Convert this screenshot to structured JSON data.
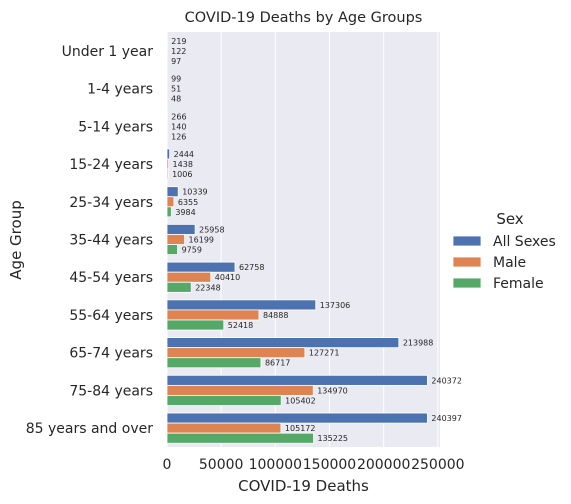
{
  "chart_data": {
    "type": "bar",
    "orientation": "horizontal",
    "title": "COVID-19 Deaths by Age Groups",
    "xlabel": "COVID-19 Deaths",
    "ylabel": "Age Group",
    "categories": [
      "Under 1 year",
      "1-4 years",
      "5-14 years",
      "15-24 years",
      "25-34 years",
      "35-44 years",
      "45-54 years",
      "55-64 years",
      "65-74 years",
      "75-84 years",
      "85 years and over"
    ],
    "series": [
      {
        "name": "All Sexes",
        "color": "#4c72b0",
        "values": [
          219,
          99,
          266,
          2444,
          10339,
          25958,
          62758,
          137306,
          213988,
          240372,
          240397
        ]
      },
      {
        "name": "Male",
        "color": "#dd8452",
        "values": [
          122,
          51,
          140,
          1438,
          6355,
          16199,
          40410,
          84888,
          127271,
          134970,
          105172
        ]
      },
      {
        "name": "Female",
        "color": "#55a868",
        "values": [
          97,
          48,
          126,
          1006,
          3984,
          9759,
          22348,
          52418,
          86717,
          105402,
          135225
        ]
      }
    ],
    "xlim": [
      0,
      252000
    ],
    "xticks": [
      0,
      50000,
      100000,
      150000,
      200000,
      250000
    ],
    "grid": true,
    "legend": {
      "title": "Sex",
      "placement": "right"
    }
  }
}
